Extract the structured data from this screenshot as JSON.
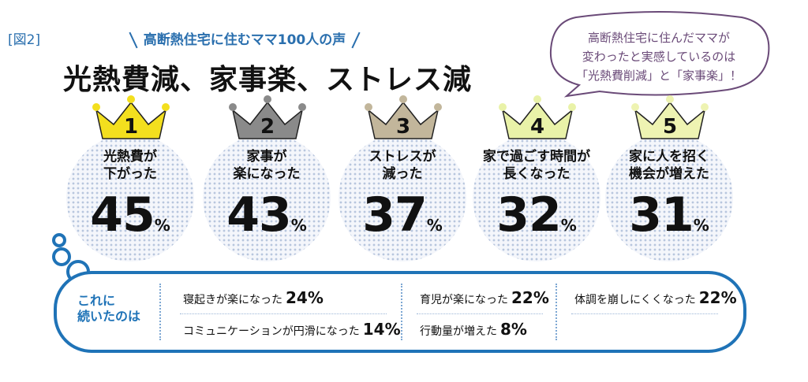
{
  "header": {
    "figure_label": "[図2]",
    "subtitle": "高断熱住宅に住むママ100人の声",
    "title": "光熱費減、家事楽、ストレス減"
  },
  "callout": {
    "lines": [
      "高断熱住宅に住んだママが",
      "変わったと実感しているのは",
      "「光熱費削減」と「家事楽」！"
    ]
  },
  "ranks": [
    {
      "rank": "1",
      "line1": "光熱費が",
      "line2": "下がった",
      "value": "45",
      "unit": "%",
      "crown_color": "#f3df1e"
    },
    {
      "rank": "2",
      "line1": "家事が",
      "line2": "楽になった",
      "value": "43",
      "unit": "%",
      "crown_color": "#8a8a8a"
    },
    {
      "rank": "3",
      "line1": "ストレスが",
      "line2": "減った",
      "value": "37",
      "unit": "%",
      "crown_color": "#c2b69b"
    },
    {
      "rank": "4",
      "line1": "家で過ごす時間が",
      "line2": "長くなった",
      "value": "32",
      "unit": "%",
      "crown_color": "#e9f2a8"
    },
    {
      "rank": "5",
      "line1": "家に人を招く",
      "line2": "機会が増えた",
      "value": "31",
      "unit": "%",
      "crown_color": "#eef3b2"
    }
  ],
  "others": {
    "heading_line1": "これに",
    "heading_line2": "続いたのは",
    "items": [
      {
        "label": "寝起きが楽になった",
        "value": "24%"
      },
      {
        "label": "コミュニケーションが円滑になった",
        "value": "14%"
      },
      {
        "label": "育児が楽になった",
        "value": "22%"
      },
      {
        "label": "行動量が増えた",
        "value": "8%"
      },
      {
        "label": "体調を崩しにくくなった",
        "value": "22%"
      }
    ]
  }
}
